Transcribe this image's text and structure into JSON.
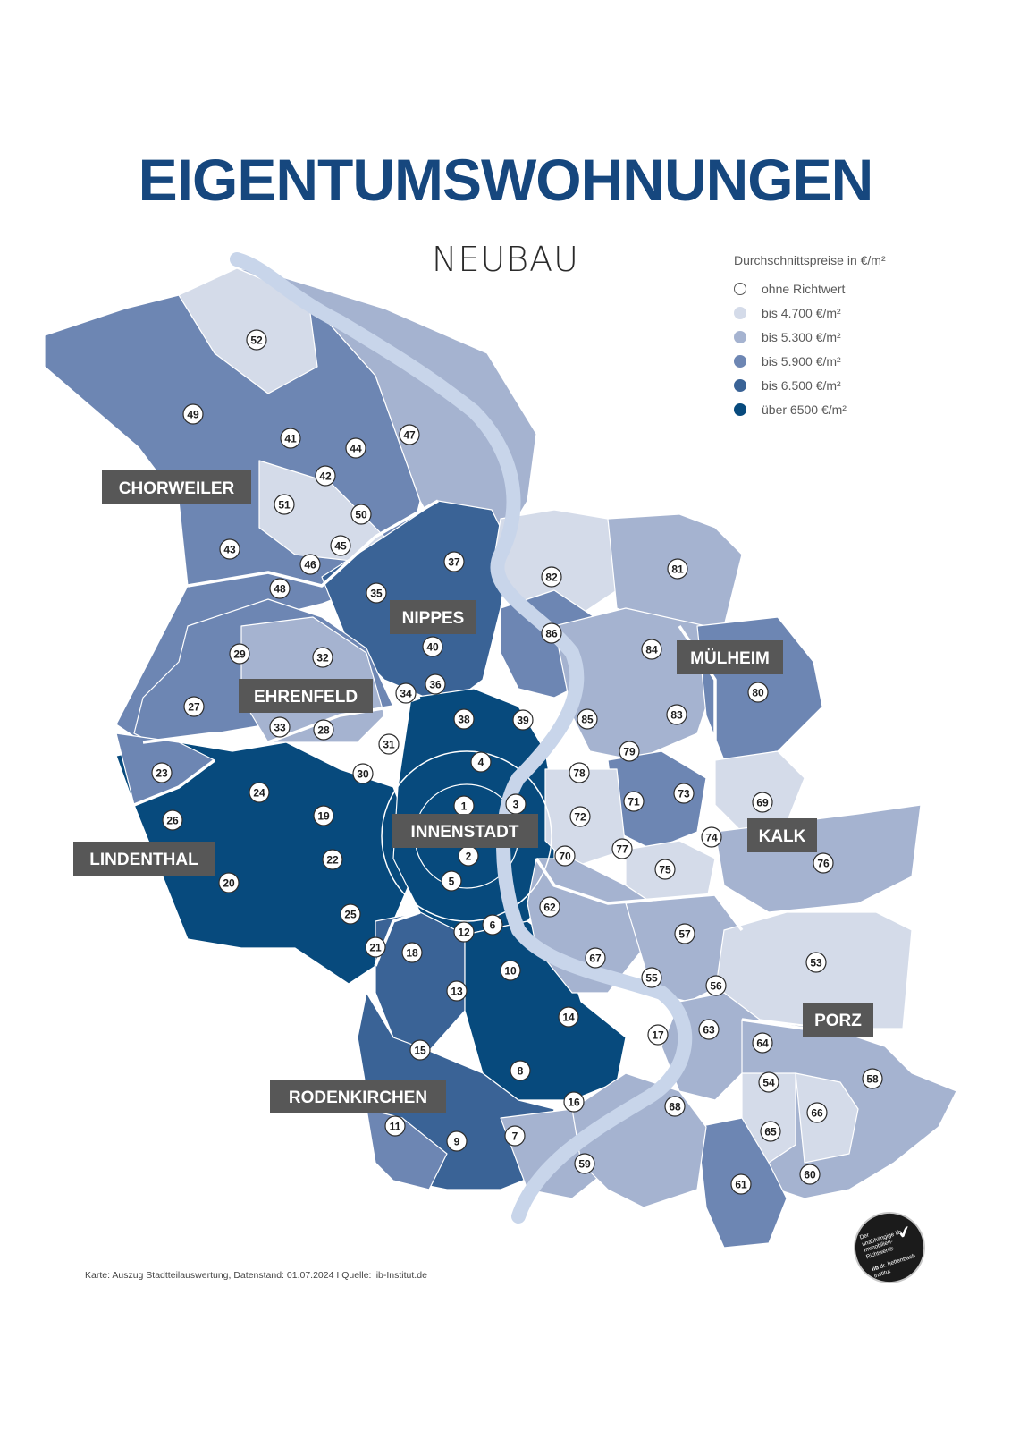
{
  "header": {
    "title": "EIGENTUMSWOHNUNGEN",
    "subtitle": "NEUBAU"
  },
  "legend": {
    "title": "Durchschnittspreise in €/m²",
    "items": [
      {
        "label": "ohne Richtwert",
        "color": "#ffffff"
      },
      {
        "label": "bis 4.700 €/m²",
        "color": "#d4dbe9"
      },
      {
        "label": "bis 5.300 €/m²",
        "color": "#a5b3d0"
      },
      {
        "label": "bis 5.900 €/m²",
        "color": "#6d86b3"
      },
      {
        "label": "bis 6.500 €/m²",
        "color": "#3a6396"
      },
      {
        "label": "über 6500 €/m²",
        "color": "#074a7d"
      }
    ]
  },
  "district_labels": [
    "CHORWEILER",
    "NIPPES",
    "MÜLHEIM",
    "EHRENFELD",
    "INNENSTADT",
    "KALK",
    "LINDENTHAL",
    "PORZ",
    "RODENKIRCHEN"
  ],
  "district_numbers": [
    "1",
    "2",
    "3",
    "4",
    "5",
    "6",
    "7",
    "8",
    "9",
    "10",
    "11",
    "12",
    "13",
    "14",
    "15",
    "16",
    "17",
    "18",
    "19",
    "20",
    "21",
    "22",
    "23",
    "24",
    "25",
    "26",
    "27",
    "28",
    "29",
    "30",
    "31",
    "32",
    "33",
    "34",
    "35",
    "36",
    "37",
    "38",
    "39",
    "40",
    "41",
    "42",
    "43",
    "44",
    "45",
    "46",
    "47",
    "48",
    "49",
    "50",
    "51",
    "52",
    "53",
    "54",
    "55",
    "56",
    "57",
    "58",
    "59",
    "60",
    "61",
    "62",
    "63",
    "64",
    "65",
    "66",
    "67",
    "68",
    "69",
    "70",
    "71",
    "72",
    "73",
    "74",
    "75",
    "76",
    "77",
    "78",
    "79",
    "80",
    "81",
    "82",
    "83",
    "84",
    "85",
    "86"
  ],
  "river_color": "#c8d5ea",
  "footer": "Karte: Auszug Stadtteilauswertung, Datenstand: 01.07.2024 I Quelle: iib-Institut.de",
  "badge": {
    "text": "Der unabhängige iib Immobilien-Richtwert®",
    "institute": "dr. hettenbach institut",
    "logo_text": "iib"
  }
}
